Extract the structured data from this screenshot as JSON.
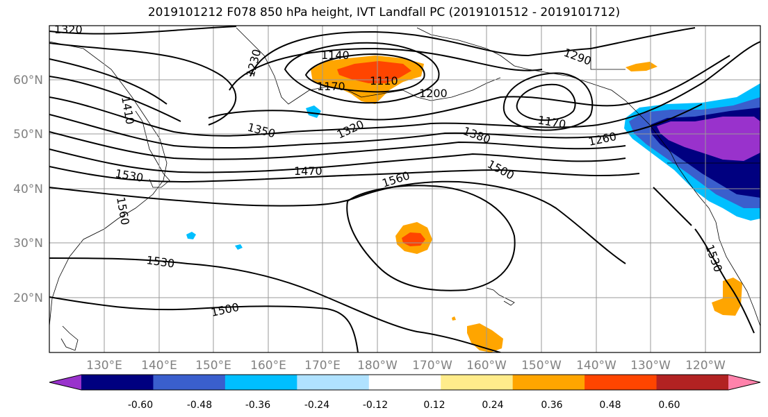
{
  "title": "2019101212 F078 850 hPa height, IVT Landfall PC (2019101512 - 2019101712)",
  "lat_ticks": [
    "60°N",
    "50°N",
    "40°N",
    "30°N",
    "20°N"
  ],
  "lon_ticks": [
    "130°E",
    "140°E",
    "150°E",
    "160°E",
    "170°E",
    "180°W",
    "170°W",
    "160°W",
    "150°W",
    "140°W",
    "130°W",
    "120°W"
  ],
  "contour_labels": [
    "1320",
    "1230",
    "1140",
    "1110",
    "1170",
    "1200",
    "1290",
    "1410",
    "1350",
    "1320",
    "1380",
    "1170",
    "1260",
    "1530",
    "1470",
    "1500",
    "1560",
    "1560",
    "1530",
    "1500",
    "1530"
  ],
  "colorbar": {
    "ticks": [
      "-0.60",
      "-0.48",
      "-0.36",
      "-0.24",
      "-0.12",
      "0.12",
      "0.24",
      "0.36",
      "0.48",
      "0.60"
    ],
    "colors": [
      "#9932CC",
      "#000080",
      "#3A5FCD",
      "#00BFFF",
      "#B0E2FF",
      "#FFFFFF",
      "#FFEC8B",
      "#FFA500",
      "#FF4500",
      "#B22222",
      "#FF82AB"
    ]
  }
}
